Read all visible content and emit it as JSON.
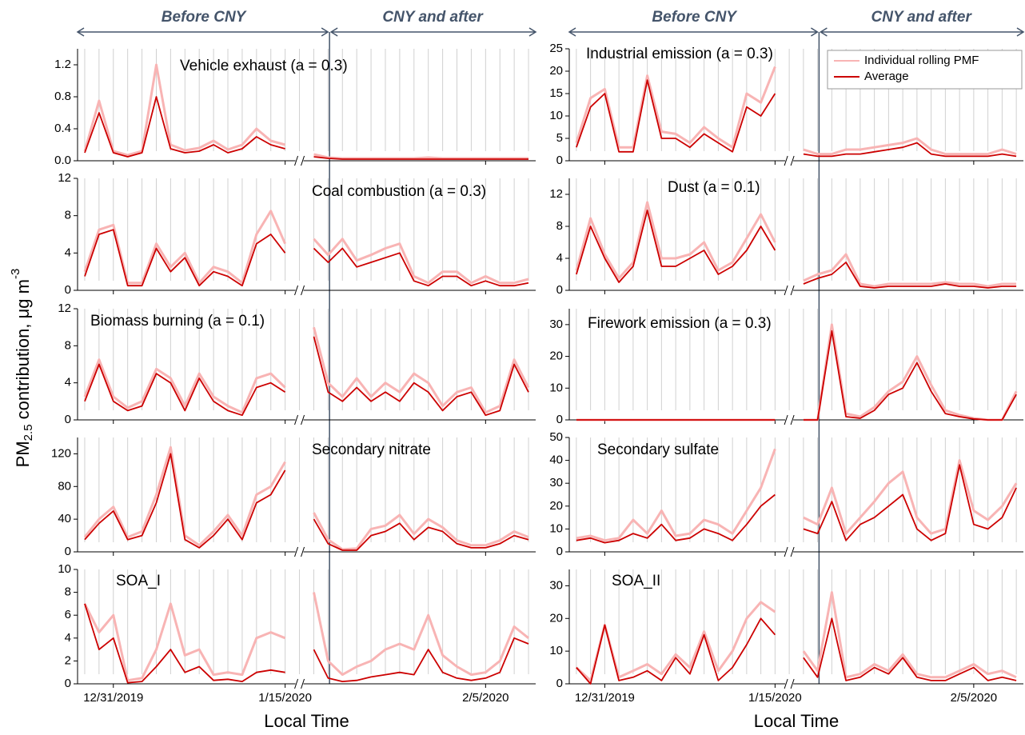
{
  "annotations": {
    "before": "Before CNY",
    "after": "CNY and after"
  },
  "y_axis_label": {
    "main": "PM",
    "sub": "2.5",
    "rest": " contribution, μg m",
    "sup": "-3"
  },
  "chart_data": [
    {
      "type": "line",
      "title": "Vehicle exhaust (a = 0.3)",
      "ylim": [
        0,
        1.4
      ],
      "yticks": [
        {
          "value": 0,
          "label": "0.0"
        },
        0.4,
        0.8,
        1.2
      ],
      "grid": true,
      "series": [
        {
          "color": "#f8b4b4",
          "values": [
            0.12,
            0.75,
            0.12,
            0.07,
            0.12,
            1.2,
            0.2,
            0.13,
            0.16,
            0.25,
            0.14,
            0.2,
            0.4,
            0.25,
            0.2,
            null,
            0.08,
            0.04,
            0.03,
            0.03,
            0.03,
            0.03,
            0.03,
            0.03,
            0.04,
            0.03,
            0.03,
            0.03,
            0.03,
            0.03,
            0.03,
            0.03
          ]
        },
        {
          "color": "#cc0000",
          "values": [
            0.1,
            0.6,
            0.1,
            0.05,
            0.1,
            0.8,
            0.15,
            0.1,
            0.12,
            0.2,
            0.1,
            0.15,
            0.3,
            0.2,
            0.15,
            null,
            0.05,
            0.03,
            0.02,
            0.02,
            0.02,
            0.02,
            0.02,
            0.02,
            0.02,
            0.02,
            0.02,
            0.02,
            0.02,
            0.02,
            0.02,
            0.02
          ]
        }
      ]
    },
    {
      "type": "line",
      "title": "Coal combustion (a = 0.3)",
      "ylim": [
        0,
        12
      ],
      "yticks": [
        0,
        4,
        8,
        12
      ],
      "grid": true,
      "series": [
        {
          "color": "#f8b4b4",
          "values": [
            2,
            6.5,
            7,
            0.8,
            0.8,
            5,
            2.5,
            4,
            0.8,
            2.5,
            2,
            0.8,
            6,
            8.5,
            5,
            null,
            5.5,
            3.8,
            5.5,
            3.2,
            3.8,
            4.5,
            5,
            1.5,
            0.8,
            2,
            2,
            0.8,
            1.5,
            0.8,
            0.8,
            1.2
          ]
        },
        {
          "color": "#cc0000",
          "values": [
            1.5,
            6,
            6.5,
            0.5,
            0.5,
            4.5,
            2,
            3.5,
            0.5,
            2,
            1.5,
            0.5,
            5,
            6,
            4,
            null,
            4.5,
            3,
            4.5,
            2.5,
            3,
            3.5,
            4,
            1,
            0.5,
            1.5,
            1.5,
            0.5,
            1,
            0.5,
            0.5,
            0.8
          ]
        }
      ]
    },
    {
      "type": "line",
      "title": "Biomass burning (a = 0.1)",
      "ylim": [
        0,
        12
      ],
      "yticks": [
        0,
        4,
        8,
        12
      ],
      "grid": true,
      "series": [
        {
          "color": "#f8b4b4",
          "values": [
            2.5,
            6.5,
            2.5,
            1.3,
            2,
            5.5,
            4.5,
            1.5,
            5,
            2.5,
            1.5,
            0.8,
            4.5,
            5,
            3.5,
            null,
            10,
            4,
            2.5,
            4.5,
            2.5,
            4,
            3,
            5,
            4,
            1.5,
            3,
            3.5,
            0.8,
            1.5,
            6.5,
            3.5
          ]
        },
        {
          "color": "#cc0000",
          "values": [
            2,
            6,
            2,
            1,
            1.5,
            5,
            4,
            1,
            4.5,
            2,
            1,
            0.5,
            3.5,
            4,
            3,
            null,
            9,
            3,
            2,
            3.5,
            2,
            3,
            2,
            4,
            3,
            1,
            2.5,
            3,
            0.5,
            1,
            6,
            3
          ]
        }
      ]
    },
    {
      "type": "line",
      "title": "Secondary nitrate",
      "ylim": [
        0,
        140
      ],
      "yticks": [
        0,
        40,
        80,
        120
      ],
      "grid": true,
      "series": [
        {
          "color": "#f8b4b4",
          "values": [
            18,
            40,
            55,
            18,
            25,
            70,
            128,
            20,
            8,
            25,
            45,
            20,
            70,
            80,
            110,
            null,
            48,
            15,
            3,
            4,
            28,
            32,
            45,
            22,
            40,
            30,
            14,
            8,
            8,
            14,
            25,
            18
          ]
        },
        {
          "color": "#cc0000",
          "values": [
            15,
            35,
            50,
            15,
            20,
            60,
            120,
            15,
            5,
            20,
            40,
            15,
            60,
            70,
            100,
            null,
            40,
            10,
            2,
            2,
            20,
            25,
            35,
            15,
            30,
            25,
            10,
            5,
            5,
            10,
            20,
            15
          ]
        }
      ]
    },
    {
      "type": "line",
      "title": "SOA_I",
      "ylim": [
        0,
        10
      ],
      "yticks": [
        0,
        2,
        4,
        6,
        8,
        10
      ],
      "grid": true,
      "xlabel": "Local Time",
      "categories": [
        null,
        null,
        "12/31/2019",
        null,
        null,
        null,
        null,
        null,
        null,
        null,
        null,
        null,
        null,
        null,
        "1/15/2020",
        null,
        null,
        null,
        null,
        null,
        null,
        null,
        null,
        null,
        null,
        null,
        null,
        null,
        "2/5/2020",
        null,
        null,
        null
      ],
      "series": [
        {
          "color": "#f8b4b4",
          "values": [
            7,
            4.5,
            6,
            0.3,
            0.5,
            3,
            7,
            2.5,
            3,
            0.8,
            1,
            0.8,
            4,
            4.5,
            4,
            null,
            8,
            2,
            0.8,
            1.5,
            2,
            3,
            3.5,
            3,
            6,
            2.5,
            1.5,
            0.8,
            1,
            2,
            5,
            4
          ]
        },
        {
          "color": "#cc0000",
          "values": [
            7,
            3,
            4,
            0.1,
            0.2,
            1.5,
            3,
            1,
            1.5,
            0.3,
            0.4,
            0.2,
            1,
            1.2,
            1,
            null,
            3,
            0.5,
            0.2,
            0.3,
            0.6,
            0.8,
            1,
            0.8,
            3,
            1,
            0.5,
            0.3,
            0.5,
            1,
            4,
            3.5
          ]
        }
      ]
    },
    {
      "type": "line",
      "title": "Industrial emission (a = 0.3)",
      "ylim": [
        0,
        25
      ],
      "yticks": [
        0,
        5,
        10,
        15,
        20,
        25
      ],
      "grid": true,
      "legend": "upper right",
      "series": [
        {
          "name": "Individual rolling PMF",
          "color": "#f8b4b4",
          "values": [
            4,
            14,
            16,
            3,
            3,
            19,
            6.5,
            6,
            4,
            7.5,
            5,
            3,
            15,
            13,
            21,
            null,
            2.5,
            1.5,
            1.5,
            2.5,
            2.5,
            3,
            3.5,
            4,
            5,
            2.5,
            1.5,
            1.5,
            1.5,
            1.5,
            2.5,
            1.5
          ]
        },
        {
          "name": "Average",
          "color": "#cc0000",
          "values": [
            3,
            12,
            15,
            2,
            2,
            18,
            5,
            5,
            3,
            6,
            4,
            2,
            12,
            10,
            15,
            null,
            1.5,
            1,
            1,
            1.5,
            1.5,
            2,
            2.5,
            3,
            4,
            1.5,
            1,
            1,
            1,
            1,
            1.5,
            1
          ]
        }
      ]
    },
    {
      "type": "line",
      "title": "Dust (a = 0.1)",
      "ylim": [
        0,
        14
      ],
      "yticks": [
        0,
        4,
        8,
        12
      ],
      "grid": true,
      "series": [
        {
          "color": "#f8b4b4",
          "values": [
            2.5,
            9,
            4.5,
            1.5,
            3.5,
            11,
            4,
            4,
            4.5,
            6,
            2.5,
            3.5,
            6.5,
            9.5,
            6,
            null,
            1.2,
            2,
            2.5,
            4.5,
            0.8,
            0.5,
            0.8,
            0.8,
            0.8,
            0.8,
            1,
            0.8,
            0.8,
            0.5,
            0.8,
            0.8
          ]
        },
        {
          "color": "#cc0000",
          "values": [
            2,
            8,
            4,
            1,
            3,
            10,
            3,
            3,
            4,
            5,
            2,
            3,
            5,
            8,
            5,
            null,
            0.8,
            1.5,
            2,
            3.5,
            0.5,
            0.3,
            0.5,
            0.5,
            0.5,
            0.5,
            0.8,
            0.5,
            0.5,
            0.3,
            0.5,
            0.5
          ]
        }
      ]
    },
    {
      "type": "line",
      "title": "Firework emission (a = 0.3)",
      "ylim": [
        0,
        35
      ],
      "yticks": [
        0,
        10,
        20,
        30
      ],
      "grid": true,
      "series": [
        {
          "color": "#f8b4b4",
          "values": [
            0,
            0,
            0,
            0,
            0,
            0,
            0,
            0,
            0,
            0,
            0,
            0,
            0,
            0,
            0,
            null,
            0,
            0,
            30,
            2,
            1,
            4,
            9,
            12,
            20,
            11,
            3,
            1.5,
            0.5,
            0,
            0,
            9
          ]
        },
        {
          "color": "#cc0000",
          "values": [
            0,
            0,
            0,
            0,
            0,
            0,
            0,
            0,
            0,
            0,
            0,
            0,
            0,
            0,
            0,
            null,
            0,
            0,
            28,
            1,
            0.5,
            3,
            8,
            10,
            18,
            9,
            2,
            1,
            0.3,
            0,
            0,
            8
          ]
        }
      ]
    },
    {
      "type": "line",
      "title": "Secondary sulfate",
      "ylim": [
        0,
        50
      ],
      "yticks": [
        0,
        10,
        20,
        30,
        40,
        50
      ],
      "grid": true,
      "series": [
        {
          "color": "#f8b4b4",
          "values": [
            6,
            7,
            5,
            6,
            14,
            8,
            18,
            7,
            8,
            14,
            12,
            8,
            18,
            28,
            45,
            null,
            15,
            12,
            28,
            8,
            15,
            22,
            30,
            35,
            15,
            8,
            10,
            40,
            18,
            14,
            20,
            30
          ]
        },
        {
          "color": "#cc0000",
          "values": [
            5,
            6,
            4,
            5,
            8,
            6,
            12,
            5,
            6,
            10,
            8,
            5,
            12,
            20,
            25,
            null,
            10,
            8,
            22,
            5,
            12,
            15,
            20,
            25,
            10,
            5,
            8,
            38,
            12,
            10,
            15,
            28
          ]
        }
      ]
    },
    {
      "type": "line",
      "title": "SOA_II",
      "ylim": [
        0,
        35
      ],
      "yticks": [
        0,
        10,
        20,
        30
      ],
      "grid": true,
      "xlabel": "Local Time",
      "categories": [
        null,
        null,
        "12/31/2019",
        null,
        null,
        null,
        null,
        null,
        null,
        null,
        null,
        null,
        null,
        null,
        "1/15/2020",
        null,
        null,
        null,
        null,
        null,
        null,
        null,
        null,
        null,
        null,
        null,
        null,
        null,
        "2/5/2020",
        null,
        null,
        null
      ],
      "series": [
        {
          "color": "#f8b4b4",
          "values": [
            5,
            1,
            18,
            2,
            4,
            6,
            3,
            9,
            5,
            16,
            4,
            10,
            20,
            25,
            22,
            null,
            10,
            4,
            28,
            2,
            3,
            6,
            4,
            9,
            3,
            2,
            2,
            4,
            6,
            3,
            4,
            2
          ]
        },
        {
          "color": "#cc0000",
          "values": [
            5,
            0,
            18,
            1,
            2,
            4,
            1,
            8,
            3,
            15,
            1,
            5,
            12,
            20,
            15,
            null,
            8,
            2,
            20,
            1,
            2,
            5,
            3,
            8,
            2,
            1,
            1,
            3,
            5,
            1,
            2,
            1
          ]
        }
      ]
    }
  ]
}
